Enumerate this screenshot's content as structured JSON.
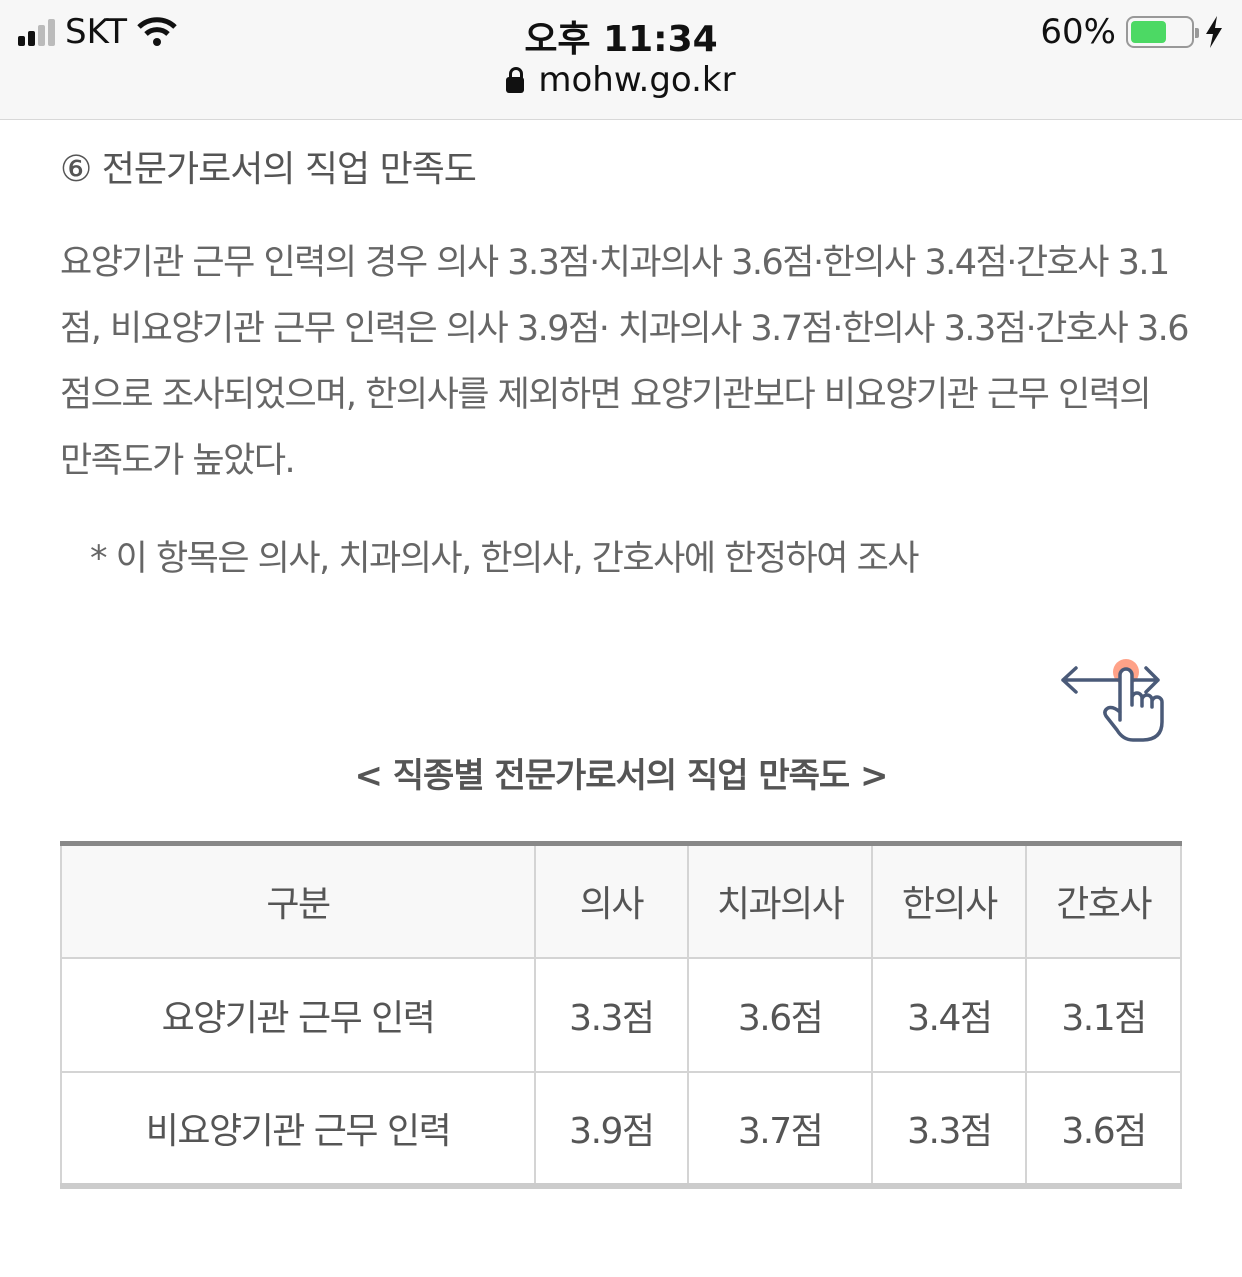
{
  "status_bar": {
    "carrier": "SKT",
    "time": "오후 11:34",
    "url": "mohw.go.kr",
    "battery": "60%",
    "battery_level": 0.6,
    "battery_color": "#4cd964"
  },
  "section": {
    "heading": "⑥ 전문가로서의 직업 만족도",
    "paragraph": "요양기관 근무 인력의 경우 의사 3.3점·치과의사 3.6점·한의사 3.4점·간호사 3.1점, 비요양기관 근무 인력은 의사 3.9점· 치과의사 3.7점·한의사 3.3점·간호사 3.6점으로 조사되었으며, 한의사를 제외하면 요양기관보다 비요양기관 근무 인력의 만족도가 높았다.",
    "note": "* 이 항목은 의사, 치과의사, 한의사, 간호사에 한정하여 조사"
  },
  "table": {
    "caption": "< 직종별 전문가로서의 직업 만족도 >",
    "headers": [
      "구분",
      "의사",
      "치과의사",
      "한의사",
      "간호사"
    ],
    "rows": [
      [
        "요양기관 근무 인력",
        "3.3점",
        "3.6점",
        "3.4점",
        "3.1점"
      ],
      [
        "비요양기관 근무 인력",
        "3.9점",
        "3.7점",
        "3.3점",
        "3.6점"
      ]
    ]
  },
  "icons": {
    "swipe": "swipe-horizontal-hand-icon"
  }
}
